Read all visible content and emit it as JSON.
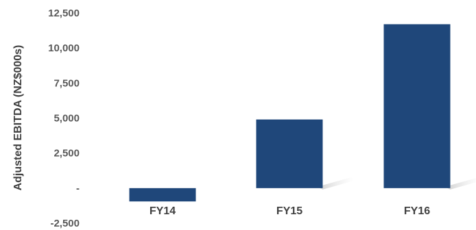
{
  "chart_data": {
    "type": "bar",
    "title": "",
    "xlabel": "",
    "ylabel": "Adjusted EBITDA (NZ$000s)",
    "categories": [
      "FY14",
      "FY15",
      "FY16"
    ],
    "values": [
      -950,
      4900,
      11700
    ],
    "ylim": [
      -2500,
      12500
    ],
    "yticks": [
      {
        "value": 12500,
        "label": "12,500"
      },
      {
        "value": 10000,
        "label": "10,000"
      },
      {
        "value": 7500,
        "label": "7,500"
      },
      {
        "value": 5000,
        "label": "5,000"
      },
      {
        "value": 2500,
        "label": "2,500"
      },
      {
        "value": 0,
        "label": "-"
      },
      {
        "value": -2500,
        "label": "-2,500"
      }
    ],
    "bar_color": "#1f477a",
    "grid": false,
    "legend": "none"
  }
}
